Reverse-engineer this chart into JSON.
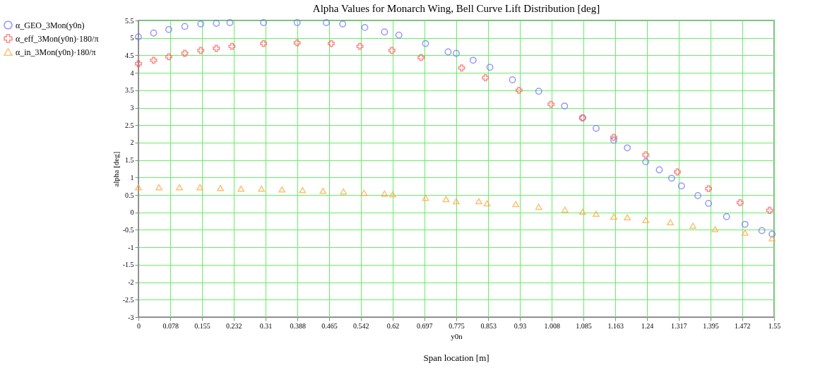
{
  "chart_data": {
    "type": "scatter",
    "title": "Alpha Values for Monarch Wing, Bell Curve Lift Distribution [deg]",
    "xlabel": "y0n",
    "ylabel": "alpha [deg]",
    "annotations": [
      "Span location [m]"
    ],
    "xlim": [
      0,
      1.55
    ],
    "xticks": [
      0,
      0.078,
      0.155,
      0.232,
      0.31,
      0.388,
      0.465,
      0.542,
      0.62,
      0.697,
      0.775,
      0.853,
      0.93,
      1.008,
      1.085,
      1.163,
      1.24,
      1.317,
      1.395,
      1.472,
      1.55
    ],
    "ylim": [
      -3,
      5.5
    ],
    "yticks": [
      -3,
      -2.5,
      -2,
      -1.5,
      -1,
      -0.5,
      0,
      0.5,
      1,
      1.5,
      2,
      2.5,
      3,
      3.5,
      4,
      4.5,
      5,
      5.5
    ],
    "grid": true,
    "legend": "left",
    "series": [
      {
        "name": "α_GEO_3Mon(y0n)",
        "color": "#6b6bff",
        "marker": "circle",
        "x": [
          0,
          0.037,
          0.074,
          0.113,
          0.152,
          0.19,
          0.223,
          0.305,
          0.387,
          0.458,
          0.498,
          0.552,
          0.6,
          0.635,
          0.7,
          0.755,
          0.775,
          0.816,
          0.857,
          0.912,
          0.976,
          1.039,
          1.083,
          1.116,
          1.159,
          1.192,
          1.237,
          1.27,
          1.3,
          1.324,
          1.364,
          1.39,
          1.434,
          1.479,
          1.52,
          1.545
        ],
        "values": [
          5.03,
          5.14,
          5.24,
          5.33,
          5.4,
          5.42,
          5.44,
          5.44,
          5.44,
          5.44,
          5.4,
          5.3,
          5.17,
          5.08,
          4.84,
          4.6,
          4.56,
          4.36,
          4.16,
          3.8,
          3.47,
          3.05,
          2.71,
          2.41,
          2.07,
          1.85,
          1.45,
          1.22,
          0.98,
          0.76,
          0.48,
          0.26,
          -0.12,
          -0.34,
          -0.52,
          -0.62
        ]
      },
      {
        "name": "α_eff_3Mon(y0n)·180/π",
        "color": "#ff5a5a",
        "marker": "cross",
        "x": [
          0,
          0.037,
          0.074,
          0.113,
          0.152,
          0.19,
          0.228,
          0.305,
          0.387,
          0.47,
          0.54,
          0.618,
          0.689,
          0.788,
          0.846,
          0.928,
          1.006,
          1.083,
          1.159,
          1.237,
          1.314,
          1.39,
          1.467,
          1.539
        ],
        "values": [
          4.26,
          4.36,
          4.46,
          4.56,
          4.64,
          4.7,
          4.76,
          4.84,
          4.86,
          4.84,
          4.76,
          4.64,
          4.44,
          4.14,
          3.86,
          3.5,
          3.1,
          2.71,
          2.15,
          1.65,
          1.16,
          0.68,
          0.28,
          0.06
        ]
      },
      {
        "name": "α_in_3Mon(y0n)·180/π",
        "color": "#ffa640",
        "marker": "triangle",
        "x": [
          0,
          0.05,
          0.1,
          0.15,
          0.2,
          0.25,
          0.3,
          0.35,
          0.4,
          0.45,
          0.5,
          0.55,
          0.6,
          0.62,
          0.7,
          0.75,
          0.775,
          0.83,
          0.85,
          0.92,
          0.976,
          1.04,
          1.083,
          1.116,
          1.159,
          1.192,
          1.237,
          1.297,
          1.352,
          1.406,
          1.479,
          1.545
        ],
        "values": [
          0.72,
          0.72,
          0.72,
          0.72,
          0.7,
          0.68,
          0.68,
          0.66,
          0.64,
          0.62,
          0.6,
          0.56,
          0.54,
          0.52,
          0.42,
          0.38,
          0.32,
          0.32,
          0.26,
          0.24,
          0.16,
          0.08,
          0.02,
          -0.04,
          -0.12,
          -0.14,
          -0.22,
          -0.28,
          -0.38,
          -0.48,
          -0.58,
          -0.74
        ]
      }
    ]
  }
}
